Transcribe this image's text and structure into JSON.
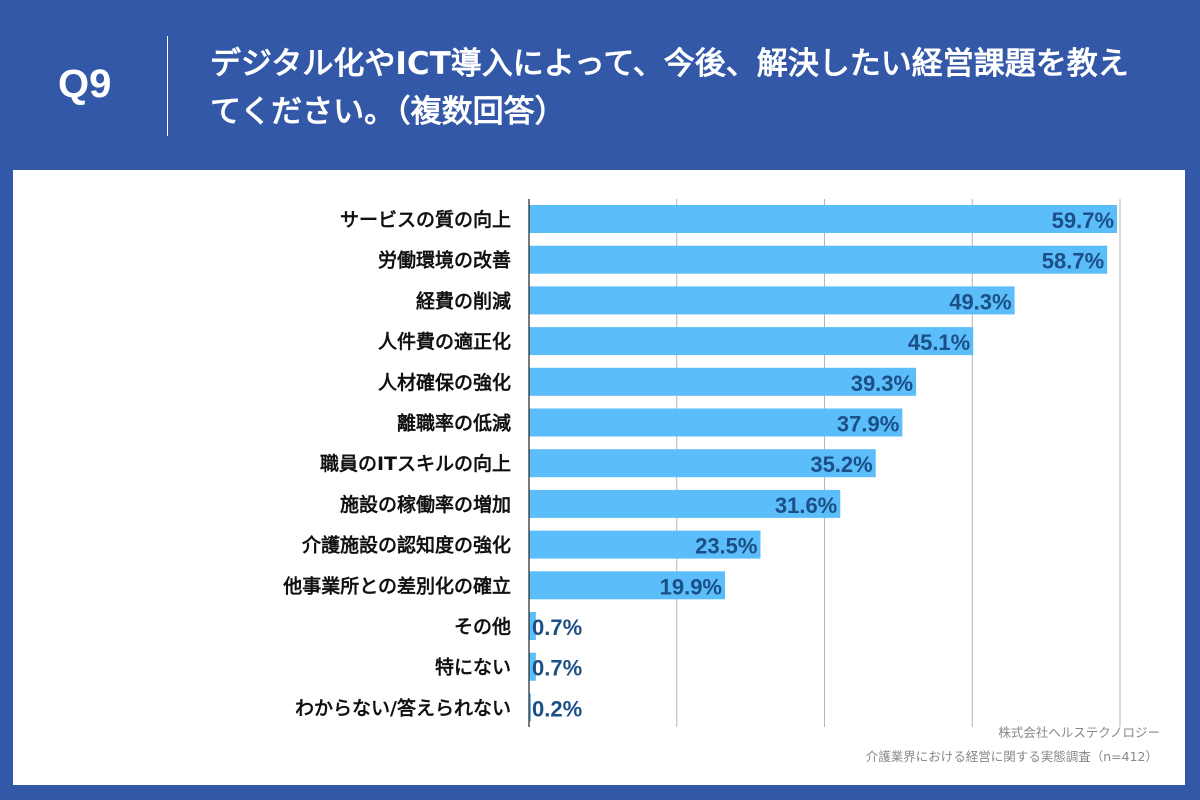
{
  "header": {
    "question_number": "Q9",
    "title": "デジタル化やICT導入によって、今後、解決したい経営課題を教えてください。（複数回答）"
  },
  "colors": {
    "background": "#3358a8",
    "bar": "#5bbdf9",
    "value_label": "#1b4f86"
  },
  "chart_data": {
    "type": "bar",
    "orientation": "horizontal",
    "categories": [
      "サービスの質の向上",
      "労働環境の改善",
      "経費の削減",
      "人件費の適正化",
      "人材確保の強化",
      "離職率の低減",
      "職員のITスキルの向上",
      "施設の稼働率の増加",
      "介護施設の認知度の強化",
      "他事業所との差別化の確立",
      "その他",
      "特にない",
      "わからない/答えられない"
    ],
    "values": [
      59.7,
      58.7,
      49.3,
      45.1,
      39.3,
      37.9,
      35.2,
      31.6,
      23.5,
      19.9,
      0.7,
      0.7,
      0.2
    ],
    "value_labels": [
      "59.7%",
      "58.7%",
      "49.3%",
      "45.1%",
      "39.3%",
      "37.9%",
      "35.2%",
      "31.6%",
      "23.5%",
      "19.9%",
      "0.7%",
      "0.7%",
      "0.2%"
    ],
    "xlim": [
      0,
      60
    ],
    "gridlines": [
      15,
      30,
      45,
      60
    ],
    "grid": true
  },
  "footer": {
    "company": "株式会社ヘルステクノロジー",
    "survey": "介護業界における経営に関する実態調査（n=412）"
  }
}
